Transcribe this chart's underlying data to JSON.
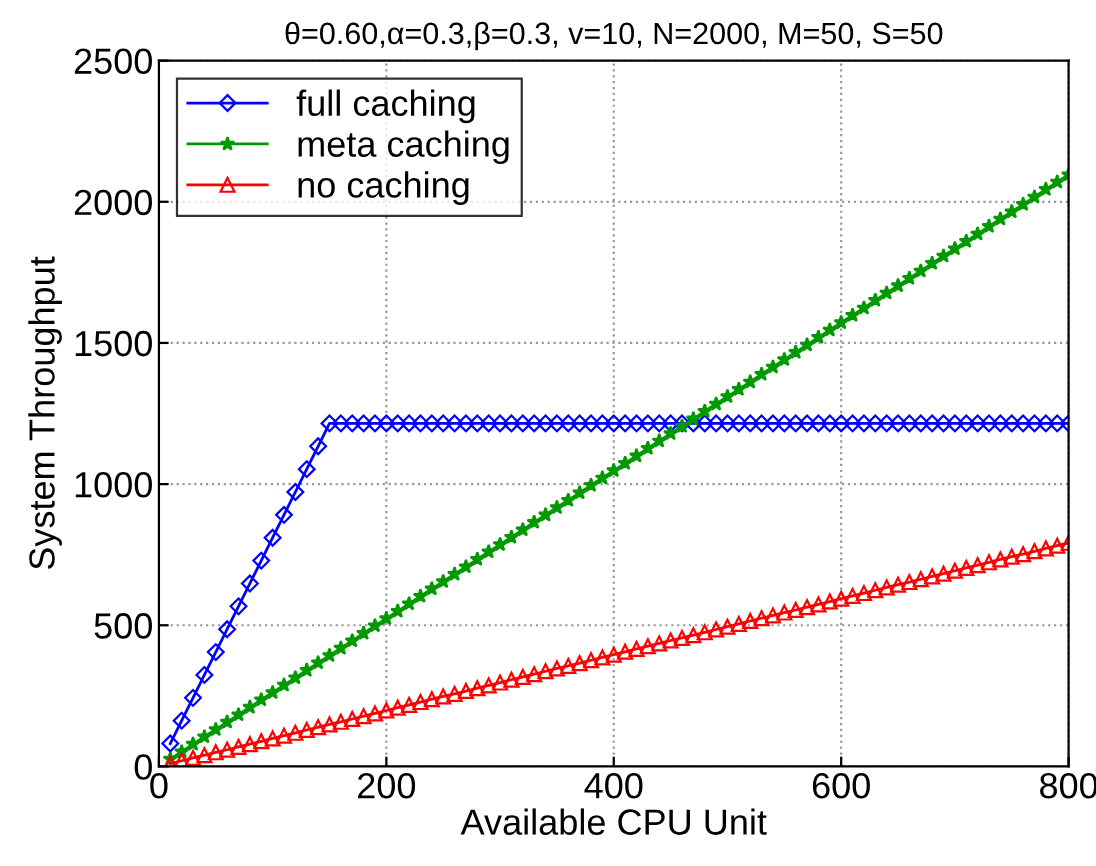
{
  "chart_data": {
    "type": "line",
    "title": "θ=0.60,α=0.3,β=0.3, v=10, N=2000, M=50, S=50",
    "xlabel": "Available CPU Unit",
    "ylabel": "System Throughput",
    "x": [
      10,
      20,
      30,
      40,
      50,
      60,
      70,
      80,
      90,
      100,
      110,
      120,
      130,
      140,
      150,
      160,
      170,
      180,
      190,
      200,
      210,
      220,
      230,
      240,
      250,
      260,
      270,
      280,
      290,
      300,
      310,
      320,
      330,
      340,
      350,
      360,
      370,
      380,
      390,
      400,
      410,
      420,
      430,
      440,
      450,
      460,
      470,
      480,
      490,
      500,
      510,
      520,
      530,
      540,
      550,
      560,
      570,
      580,
      590,
      600,
      610,
      620,
      630,
      640,
      650,
      660,
      670,
      680,
      690,
      700,
      710,
      720,
      730,
      740,
      750,
      760,
      770,
      780,
      790,
      800
    ],
    "series": [
      {
        "name": "full caching",
        "color": "#0000ff",
        "marker": "diamond",
        "values": [
          81,
          162,
          243,
          324,
          405,
          486,
          567,
          648,
          729,
          810,
          891,
          972,
          1053,
          1134,
          1215,
          1215,
          1215,
          1215,
          1215,
          1215,
          1215,
          1215,
          1215,
          1215,
          1215,
          1215,
          1215,
          1215,
          1215,
          1215,
          1215,
          1215,
          1215,
          1215,
          1215,
          1215,
          1215,
          1215,
          1215,
          1215,
          1215,
          1215,
          1215,
          1215,
          1215,
          1215,
          1215,
          1215,
          1215,
          1215,
          1215,
          1215,
          1215,
          1215,
          1215,
          1215,
          1215,
          1215,
          1215,
          1215,
          1215,
          1215,
          1215,
          1215,
          1215,
          1215,
          1215,
          1215,
          1215,
          1215,
          1215,
          1215,
          1215,
          1215,
          1215,
          1215,
          1215,
          1215,
          1215,
          1215
        ]
      },
      {
        "name": "meta caching",
        "color": "#009900",
        "marker": "star",
        "values": [
          26,
          52,
          79,
          105,
          131,
          157,
          183,
          210,
          236,
          262,
          288,
          314,
          341,
          367,
          393,
          419,
          445,
          472,
          498,
          524,
          550,
          576,
          603,
          629,
          655,
          681,
          707,
          734,
          760,
          786,
          812,
          838,
          865,
          891,
          917,
          943,
          969,
          996,
          1022,
          1048,
          1074,
          1100,
          1127,
          1153,
          1179,
          1205,
          1231,
          1258,
          1284,
          1310,
          1336,
          1362,
          1389,
          1415,
          1441,
          1467,
          1493,
          1520,
          1546,
          1572,
          1598,
          1624,
          1651,
          1677,
          1703,
          1729,
          1755,
          1782,
          1808,
          1834,
          1860,
          1886,
          1913,
          1939,
          1965,
          1991,
          2017,
          2044,
          2070,
          2096
        ]
      },
      {
        "name": "no caching",
        "color": "#ff0000",
        "marker": "triangle",
        "values": [
          10,
          20,
          30,
          40,
          50,
          59,
          69,
          79,
          89,
          99,
          109,
          119,
          129,
          139,
          149,
          158,
          168,
          178,
          188,
          198,
          208,
          218,
          228,
          238,
          248,
          257,
          267,
          277,
          287,
          297,
          307,
          317,
          327,
          337,
          347,
          356,
          366,
          376,
          386,
          396,
          406,
          416,
          426,
          436,
          446,
          455,
          465,
          475,
          485,
          495,
          505,
          515,
          525,
          535,
          545,
          554,
          564,
          574,
          584,
          594,
          604,
          614,
          624,
          634,
          644,
          653,
          663,
          673,
          683,
          693,
          703,
          713,
          723,
          733,
          743,
          752,
          762,
          772,
          782,
          792
        ]
      }
    ],
    "xlim": [
      0,
      800
    ],
    "xticks": [
      0,
      200,
      400,
      600,
      800
    ],
    "ylim": [
      0,
      2500
    ],
    "yticks": [
      0,
      500,
      1000,
      1500,
      2000,
      2500
    ],
    "grid": true,
    "legend": "top left",
    "line_style": "solid"
  }
}
